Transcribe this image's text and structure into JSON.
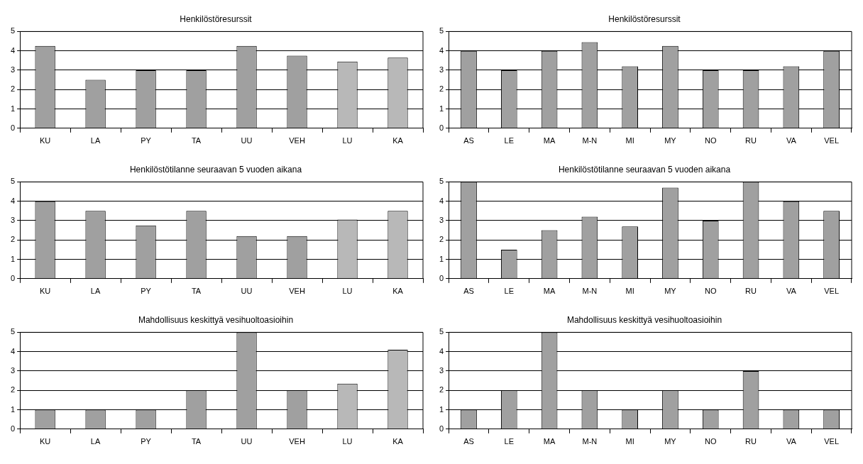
{
  "chart_data": [
    {
      "type": "bar",
      "title": "Henkilöstöresurssit",
      "categories": [
        "KU",
        "LA",
        "PY",
        "TA",
        "UU",
        "VEH",
        "LU",
        "KA"
      ],
      "values": [
        4.25,
        2.5,
        3,
        3,
        4.25,
        3.75,
        3.45,
        3.65
      ],
      "colors": [
        "#a0a0a0",
        "#a0a0a0",
        "#a0a0a0",
        "#a0a0a0",
        "#a0a0a0",
        "#a0a0a0",
        "#b8b8b8",
        "#b8b8b8"
      ],
      "ylim": [
        0,
        5
      ],
      "yticks": [
        0,
        1,
        2,
        3,
        4,
        5
      ],
      "grid": "y",
      "legend": false
    },
    {
      "type": "bar",
      "title": "Henkilöstöresurssit",
      "categories": [
        "AS",
        "LE",
        "MA",
        "M-N",
        "MI",
        "MY",
        "NO",
        "RU",
        "VA",
        "VEL"
      ],
      "values": [
        4,
        3,
        4,
        4.45,
        3.2,
        4.25,
        3,
        3,
        3.2,
        4
      ],
      "color": "#a0a0a0",
      "ylim": [
        0,
        5
      ],
      "yticks": [
        0,
        1,
        2,
        3,
        4,
        5
      ],
      "grid": "y",
      "legend": false
    },
    {
      "type": "bar",
      "title": "Henkilöstötilanne seuraavan 5 vuoden aikana",
      "categories": [
        "KU",
        "LA",
        "PY",
        "TA",
        "UU",
        "VEH",
        "LU",
        "KA"
      ],
      "values": [
        4,
        3.5,
        2.75,
        3.5,
        2.2,
        2.2,
        3.05,
        3.5
      ],
      "colors": [
        "#a0a0a0",
        "#a0a0a0",
        "#a0a0a0",
        "#a0a0a0",
        "#a0a0a0",
        "#a0a0a0",
        "#b8b8b8",
        "#b8b8b8"
      ],
      "ylim": [
        0,
        5
      ],
      "yticks": [
        0,
        1,
        2,
        3,
        4,
        5
      ],
      "grid": "y",
      "legend": false
    },
    {
      "type": "bar",
      "title": "Henkilöstötilanne seuraavan 5 vuoden aikana",
      "categories": [
        "AS",
        "LE",
        "MA",
        "M-N",
        "MI",
        "MY",
        "NO",
        "RU",
        "VA",
        "VEL"
      ],
      "values": [
        5,
        1.5,
        2.5,
        3.2,
        2.7,
        4.7,
        3,
        5,
        4,
        3.5
      ],
      "color": "#a0a0a0",
      "ylim": [
        0,
        5
      ],
      "yticks": [
        0,
        1,
        2,
        3,
        4,
        5
      ],
      "grid": "y",
      "legend": false
    },
    {
      "type": "bar",
      "title": "Mahdollisuus keskittyä vesihuoltoasioihin",
      "categories": [
        "KU",
        "LA",
        "PY",
        "TA",
        "UU",
        "VEH",
        "LU",
        "KA"
      ],
      "values": [
        1,
        1,
        1,
        2,
        5,
        2,
        2.35,
        4.1
      ],
      "colors": [
        "#a0a0a0",
        "#a0a0a0",
        "#a0a0a0",
        "#a0a0a0",
        "#a0a0a0",
        "#a0a0a0",
        "#b8b8b8",
        "#b8b8b8"
      ],
      "ylim": [
        0,
        5
      ],
      "yticks": [
        0,
        1,
        2,
        3,
        4,
        5
      ],
      "grid": "y",
      "legend": false
    },
    {
      "type": "bar",
      "title": "Mahdollisuus keskittyä vesihuoltoasioihin",
      "categories": [
        "AS",
        "LE",
        "MA",
        "M-N",
        "MI",
        "MY",
        "NO",
        "RU",
        "VA",
        "VEL"
      ],
      "values": [
        1,
        2,
        5,
        2,
        1,
        2,
        1,
        3,
        1,
        1
      ],
      "color": "#a0a0a0",
      "ylim": [
        0,
        5
      ],
      "yticks": [
        0,
        1,
        2,
        3,
        4,
        5
      ],
      "grid": "y",
      "legend": false
    }
  ]
}
